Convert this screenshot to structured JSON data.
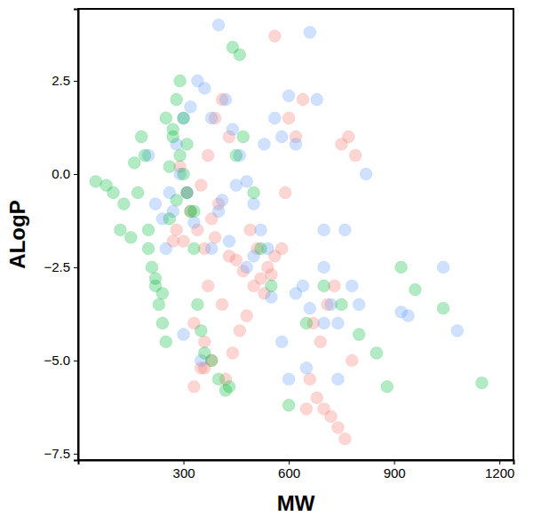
{
  "chart_data": {
    "type": "scatter",
    "x_label": "MW",
    "y_label": "ALogP",
    "xlim": [
      0,
      1240
    ],
    "ylim": [
      -7.67,
      4.43
    ],
    "xticks": [
      300,
      600,
      900,
      1200
    ],
    "yticks": [
      {
        "value": 2.5,
        "label": "2.5"
      },
      {
        "value": 0,
        "label": "0.0"
      },
      {
        "value": -2.5,
        "label": "−2.5"
      },
      {
        "value": -5,
        "label": "−5.0"
      },
      {
        "value": -7.5,
        "label": "−7.5"
      }
    ],
    "grid": false,
    "marker": "circle",
    "series": [
      {
        "color": "#F8766D",
        "x": [
          320,
          340,
          360,
          380,
          400,
          350,
          370,
          390,
          410,
          430,
          330,
          360,
          380,
          420,
          440,
          460,
          480,
          500,
          520,
          540,
          560,
          580,
          600,
          620,
          640,
          660,
          680,
          700,
          720,
          740,
          760,
          780,
          330,
          350,
          370,
          300,
          310,
          290,
          280,
          270,
          450,
          470,
          490,
          510,
          530,
          550,
          410,
          430,
          390,
          360,
          650,
          670,
          690,
          710,
          730,
          750,
          770,
          790,
          560,
          590
        ],
        "values": [
          -1.0,
          -1.5,
          -2.0,
          -1.2,
          -0.8,
          -0.3,
          0.5,
          1.5,
          2.0,
          1.0,
          -4.0,
          -4.5,
          -5.0,
          -5.5,
          -4.8,
          -4.2,
          -3.8,
          -3.0,
          -2.8,
          -2.5,
          -2.2,
          -2.0,
          1.5,
          1.0,
          2.0,
          -5.5,
          -6.0,
          -6.3,
          -6.5,
          -6.8,
          -7.1,
          -5.0,
          -5.7,
          -5.2,
          -3.0,
          -1.8,
          -0.5,
          0.2,
          -1.5,
          -1.8,
          -2.3,
          -2.6,
          -1.5,
          -2.0,
          -3.2,
          -2.7,
          -3.5,
          -2.2,
          -1.7,
          -5.2,
          -6.3,
          -4.0,
          -4.5,
          -3.5,
          -3.0,
          0.8,
          1.0,
          0.5,
          3.7,
          -0.5
        ]
      },
      {
        "color": "#619CFF",
        "x": [
          200,
          220,
          240,
          260,
          280,
          300,
          320,
          340,
          360,
          380,
          400,
          420,
          440,
          460,
          480,
          500,
          520,
          540,
          560,
          580,
          600,
          620,
          640,
          660,
          680,
          700,
          720,
          740,
          760,
          780,
          800,
          820,
          920,
          1040,
          1080,
          940,
          300,
          350,
          400,
          450,
          500,
          550,
          600,
          650,
          700,
          250,
          270,
          290,
          310,
          330,
          410,
          430,
          480,
          580,
          620,
          660,
          700,
          740,
          380,
          530
        ],
        "values": [
          0.5,
          -0.8,
          -1.2,
          -0.5,
          0.8,
          1.5,
          1.8,
          2.5,
          2.3,
          1.5,
          4.0,
          2.0,
          1.2,
          0.5,
          -0.2,
          -0.8,
          -1.5,
          -2.0,
          1.5,
          1.0,
          2.1,
          0.8,
          -3.0,
          3.8,
          2.0,
          -2.5,
          -3.5,
          -4.0,
          -1.5,
          -3.0,
          -3.5,
          0.0,
          -3.7,
          -2.5,
          -4.2,
          -3.8,
          -4.3,
          -5.0,
          -1.0,
          -0.3,
          -2.2,
          -3.3,
          -5.5,
          -5.2,
          -1.5,
          -2.0,
          -1.0,
          0.0,
          -0.5,
          -1.3,
          -0.7,
          -1.8,
          -2.5,
          -4.5,
          -3.2,
          -3.6,
          -4.0,
          -5.5,
          -2.0,
          0.8
        ]
      },
      {
        "color": "#00BA38",
        "x": [
          50,
          80,
          100,
          120,
          130,
          150,
          160,
          170,
          180,
          190,
          200,
          210,
          220,
          230,
          240,
          250,
          260,
          270,
          280,
          290,
          300,
          310,
          320,
          330,
          340,
          350,
          360,
          380,
          400,
          420,
          440,
          460,
          200,
          220,
          240,
          260,
          280,
          300,
          250,
          270,
          290,
          310,
          330,
          450,
          470,
          500,
          520,
          550,
          600,
          650,
          700,
          750,
          800,
          850,
          880,
          920,
          960,
          1040,
          1150,
          430
        ],
        "values": [
          -0.2,
          -0.3,
          -0.5,
          -1.5,
          -0.8,
          -1.7,
          0.3,
          -0.5,
          1.0,
          0.5,
          -1.5,
          -2.5,
          -3.0,
          -3.5,
          -4.0,
          -4.5,
          0.2,
          1.0,
          2.0,
          2.5,
          1.5,
          0.8,
          -1.0,
          -2.0,
          -3.5,
          -4.2,
          -4.8,
          -5.0,
          -5.5,
          -5.8,
          3.4,
          3.2,
          -2.0,
          -2.8,
          -3.2,
          -1.2,
          -0.7,
          0.0,
          1.5,
          1.2,
          0.5,
          -0.5,
          -1.0,
          0.5,
          1.0,
          -0.5,
          -2.0,
          -3.0,
          -6.2,
          -4.0,
          -3.0,
          -3.5,
          -4.3,
          -4.8,
          -5.7,
          -2.5,
          -3.1,
          -3.6,
          -5.6,
          -5.7
        ]
      }
    ]
  }
}
